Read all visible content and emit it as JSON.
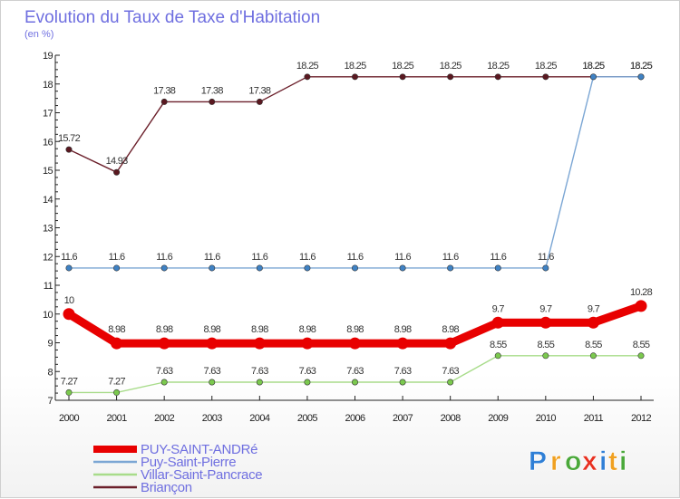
{
  "chart_data": {
    "type": "line",
    "title": "Evolution du Taux de Taxe d'Habitation",
    "subtitle": "(en %)",
    "xlabel": "",
    "ylabel": "(en %)",
    "categories": [
      "2000",
      "2001",
      "2002",
      "2003",
      "2004",
      "2005",
      "2006",
      "2007",
      "2008",
      "2009",
      "2010",
      "2011",
      "2012"
    ],
    "ylim": [
      7,
      19
    ],
    "yticks": [
      7,
      8,
      9,
      10,
      11,
      12,
      13,
      14,
      15,
      16,
      17,
      18,
      19
    ],
    "grid": false,
    "series": [
      {
        "name": "Briançon",
        "color": "#6b1f2a",
        "point_color": "#5a1820",
        "values": [
          15.72,
          14.93,
          17.38,
          17.38,
          17.38,
          18.25,
          18.25,
          18.25,
          18.25,
          18.25,
          18.25,
          18.25,
          18.25
        ],
        "labels": [
          "15.72",
          "14.93",
          "17.38",
          "17.38",
          "17.38",
          "18.25",
          "18.25",
          "18.25",
          "18.25",
          "18.25",
          "18.25",
          "18.25",
          "18.25"
        ]
      },
      {
        "name": "Puy-Saint-Pierre",
        "color": "#7ba6d4",
        "point_color": "#3f82c4",
        "values": [
          11.6,
          11.6,
          11.6,
          11.6,
          11.6,
          11.6,
          11.6,
          11.6,
          11.6,
          11.6,
          11.6,
          18.25,
          18.25
        ],
        "labels": [
          "11.6",
          "11.6",
          "11.6",
          "11.6",
          "11.6",
          "11.6",
          "11.6",
          "11.6",
          "11.6",
          "11.6",
          "11.6",
          "18.25",
          "18.25"
        ]
      },
      {
        "name": "Villar-Saint-Pancrace",
        "color": "#a8dc8a",
        "point_color": "#7bc94e",
        "values": [
          7.27,
          7.27,
          7.63,
          7.63,
          7.63,
          7.63,
          7.63,
          7.63,
          7.63,
          8.55,
          8.55,
          8.55,
          8.55
        ],
        "labels": [
          "7.27",
          "7.27",
          "7.63",
          "7.63",
          "7.63",
          "7.63",
          "7.63",
          "7.63",
          "7.63",
          "8.55",
          "8.55",
          "8.55",
          "8.55"
        ]
      },
      {
        "name": "PUY-SAINT-ANDRé",
        "color": "#e80000",
        "point_color": "#e80000",
        "bold": true,
        "values": [
          10,
          8.98,
          8.98,
          8.98,
          8.98,
          8.98,
          8.98,
          8.98,
          8.98,
          9.7,
          9.7,
          9.7,
          10.28
        ],
        "labels": [
          "10",
          "8.98",
          "8.98",
          "8.98",
          "8.98",
          "8.98",
          "8.98",
          "8.98",
          "8.98",
          "9.7",
          "9.7",
          "9.7",
          "10.28"
        ]
      }
    ],
    "legend_order": [
      "PUY-SAINT-ANDRé",
      "Puy-Saint-Pierre",
      "Villar-Saint-Pancrace",
      "Briançon"
    ],
    "legend_position": "bottom-left"
  },
  "branding": {
    "logo_letters": [
      "P",
      "r",
      "o",
      "x",
      "i",
      "t",
      "i"
    ],
    "logo_colors": [
      "#2f7fd6",
      "#f0a020",
      "#4aa83a",
      "#e83020",
      "#2f7fd6",
      "#f0a020",
      "#4aa83a"
    ]
  }
}
